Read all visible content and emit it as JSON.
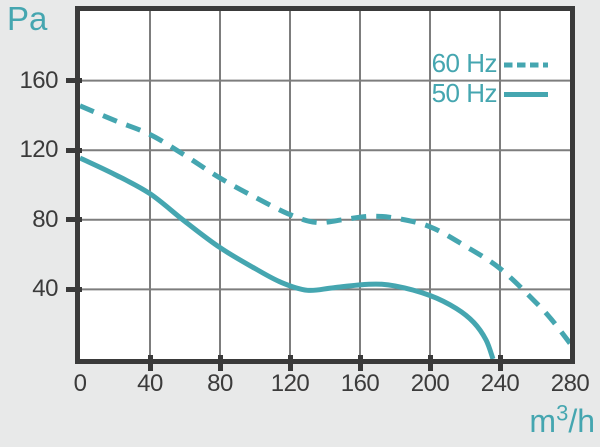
{
  "figure": {
    "background_color": "#e8e9e9",
    "plot_background_color": "#ffffff",
    "border_color": "#3a3a3a",
    "grid_color": "#7d7d7d",
    "ink_color": "#3b3b3b",
    "accent_color": "#45a6b0",
    "y_axis_unit": "Pa",
    "x_axis_unit": {
      "base": "m",
      "sup": "3",
      "rest": "/h"
    }
  },
  "legend": {
    "position": "top-right",
    "items": [
      {
        "label": "60 Hz",
        "line_style": "dashed"
      },
      {
        "label": "50 Hz",
        "line_style": "solid"
      }
    ]
  },
  "chart_data": {
    "type": "line",
    "title": "",
    "xlabel": "m3/h",
    "ylabel": "Pa",
    "xlim": [
      0,
      280
    ],
    "ylim": [
      0,
      200
    ],
    "x_ticks": [
      0,
      40,
      80,
      120,
      160,
      200,
      240,
      280
    ],
    "y_ticks": [
      40,
      80,
      120,
      160
    ],
    "grid": true,
    "legend_position": "top-right",
    "series": [
      {
        "name": "60 Hz",
        "style": "dashed",
        "color": "#45a6b0",
        "points": [
          [
            0,
            145.5
          ],
          [
            20,
            137
          ],
          [
            40,
            129
          ],
          [
            60,
            117
          ],
          [
            80,
            104
          ],
          [
            100,
            93
          ],
          [
            120,
            83
          ],
          [
            135,
            78.5
          ],
          [
            150,
            80
          ],
          [
            165,
            82
          ],
          [
            180,
            81
          ],
          [
            200,
            76
          ],
          [
            220,
            65
          ],
          [
            240,
            52
          ],
          [
            260,
            33
          ],
          [
            270,
            22
          ],
          [
            280,
            9
          ]
        ]
      },
      {
        "name": "50 Hz",
        "style": "solid",
        "color": "#45a6b0",
        "points": [
          [
            0,
            115.5
          ],
          [
            20,
            106
          ],
          [
            40,
            95
          ],
          [
            60,
            79
          ],
          [
            80,
            64
          ],
          [
            100,
            52
          ],
          [
            115,
            44
          ],
          [
            130,
            39.5
          ],
          [
            145,
            41
          ],
          [
            165,
            43
          ],
          [
            180,
            42
          ],
          [
            200,
            36.5
          ],
          [
            215,
            29
          ],
          [
            225,
            21
          ],
          [
            232,
            11
          ],
          [
            236,
            0
          ]
        ]
      }
    ]
  }
}
